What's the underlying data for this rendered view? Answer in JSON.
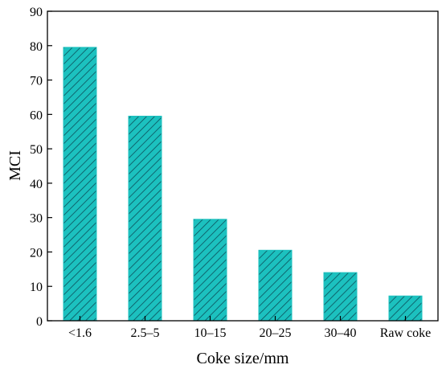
{
  "chart_data": {
    "type": "bar",
    "title": "",
    "xlabel": "Coke size/mm",
    "ylabel": "MCI",
    "categories": [
      "<1.6",
      "2.5–5",
      "10–15",
      "20–25",
      "30–40",
      "Raw coke"
    ],
    "values": [
      79.5,
      59.5,
      29.5,
      20.5,
      14.0,
      7.2
    ],
    "ylim": [
      0,
      90
    ],
    "yticks": [
      0,
      10,
      20,
      30,
      40,
      50,
      60,
      70,
      80,
      90
    ],
    "grid": false,
    "bar_fill": "#1cc1bf",
    "hatch_color": "#0b4f5a",
    "hatch": "diagonal"
  }
}
